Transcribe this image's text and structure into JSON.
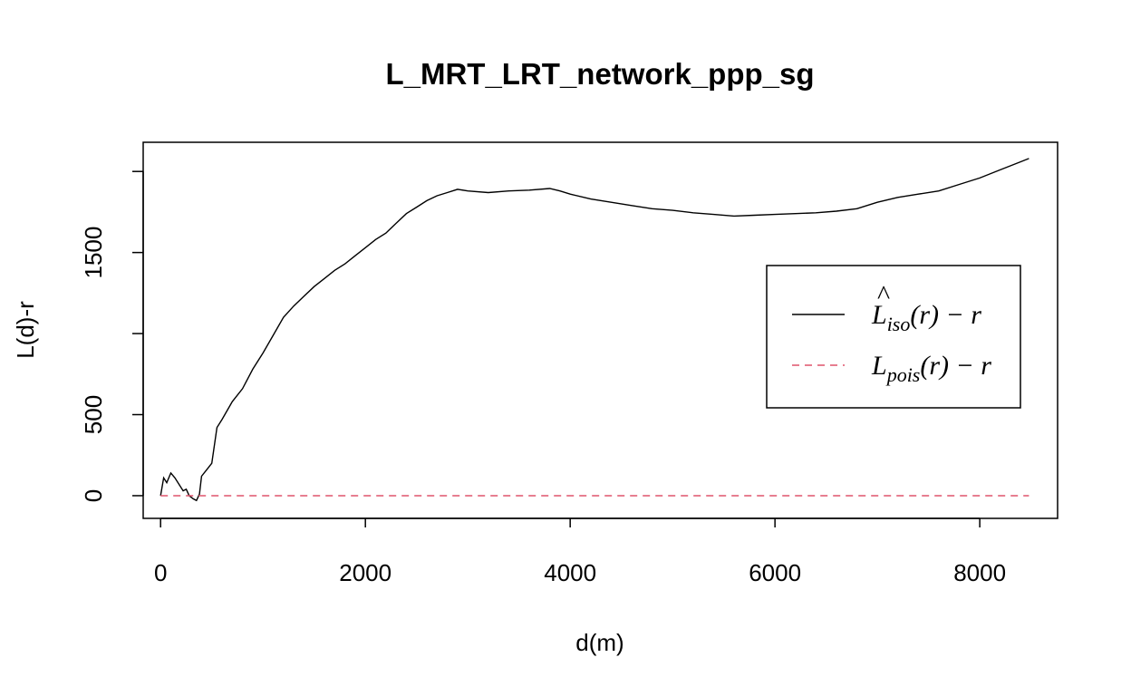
{
  "chart_data": {
    "type": "line",
    "title": "L_MRT_LRT_network_ppp_sg",
    "xlabel": "d(m)",
    "ylabel": "L(d)-r",
    "xlim": [
      -170,
      8760
    ],
    "ylim": [
      -140,
      2180
    ],
    "x_ticks": [
      0,
      2000,
      4000,
      6000,
      8000
    ],
    "y_ticks": [
      0,
      500,
      1000,
      1500,
      2000
    ],
    "y_tick_labels": [
      "0",
      "500",
      "",
      "1500",
      ""
    ],
    "legend": {
      "placement": "right",
      "entries": [
        {
          "main": "L",
          "hat": "^",
          "sub": "iso",
          "rest": "(r) − r",
          "color": "#000000",
          "dash": "solid"
        },
        {
          "main": "L",
          "hat": "",
          "sub": "pois",
          "rest": "(r) − r",
          "color": "#df536b",
          "dash": "dashed"
        }
      ]
    },
    "series": [
      {
        "key": "iso",
        "color": "#000000",
        "dash": "solid",
        "points": [
          [
            0,
            0
          ],
          [
            30,
            110
          ],
          [
            60,
            80
          ],
          [
            100,
            140
          ],
          [
            140,
            110
          ],
          [
            180,
            70
          ],
          [
            220,
            30
          ],
          [
            250,
            40
          ],
          [
            280,
            0
          ],
          [
            320,
            -20
          ],
          [
            350,
            -30
          ],
          [
            380,
            10
          ],
          [
            400,
            120
          ],
          [
            450,
            160
          ],
          [
            500,
            200
          ],
          [
            550,
            420
          ],
          [
            600,
            470
          ],
          [
            700,
            580
          ],
          [
            800,
            660
          ],
          [
            900,
            780
          ],
          [
            1000,
            880
          ],
          [
            1100,
            990
          ],
          [
            1200,
            1100
          ],
          [
            1300,
            1170
          ],
          [
            1400,
            1230
          ],
          [
            1500,
            1290
          ],
          [
            1600,
            1340
          ],
          [
            1700,
            1390
          ],
          [
            1800,
            1430
          ],
          [
            1900,
            1480
          ],
          [
            2000,
            1530
          ],
          [
            2100,
            1580
          ],
          [
            2200,
            1620
          ],
          [
            2300,
            1680
          ],
          [
            2400,
            1740
          ],
          [
            2500,
            1780
          ],
          [
            2600,
            1820
          ],
          [
            2700,
            1850
          ],
          [
            2800,
            1870
          ],
          [
            2900,
            1890
          ],
          [
            3000,
            1880
          ],
          [
            3200,
            1870
          ],
          [
            3400,
            1880
          ],
          [
            3600,
            1885
          ],
          [
            3800,
            1895
          ],
          [
            3900,
            1880
          ],
          [
            4000,
            1860
          ],
          [
            4200,
            1830
          ],
          [
            4400,
            1810
          ],
          [
            4600,
            1790
          ],
          [
            4800,
            1770
          ],
          [
            4900,
            1765
          ],
          [
            5000,
            1760
          ],
          [
            5200,
            1745
          ],
          [
            5400,
            1735
          ],
          [
            5600,
            1725
          ],
          [
            5800,
            1730
          ],
          [
            6000,
            1735
          ],
          [
            6200,
            1740
          ],
          [
            6400,
            1745
          ],
          [
            6600,
            1755
          ],
          [
            6800,
            1770
          ],
          [
            7000,
            1810
          ],
          [
            7200,
            1840
          ],
          [
            7400,
            1860
          ],
          [
            7600,
            1880
          ],
          [
            7800,
            1920
          ],
          [
            8000,
            1960
          ],
          [
            8200,
            2010
          ],
          [
            8400,
            2060
          ],
          [
            8480,
            2080
          ]
        ]
      },
      {
        "key": "pois",
        "color": "#df536b",
        "dash": "dashed",
        "points": [
          [
            0,
            0
          ],
          [
            8480,
            0
          ]
        ]
      }
    ]
  }
}
